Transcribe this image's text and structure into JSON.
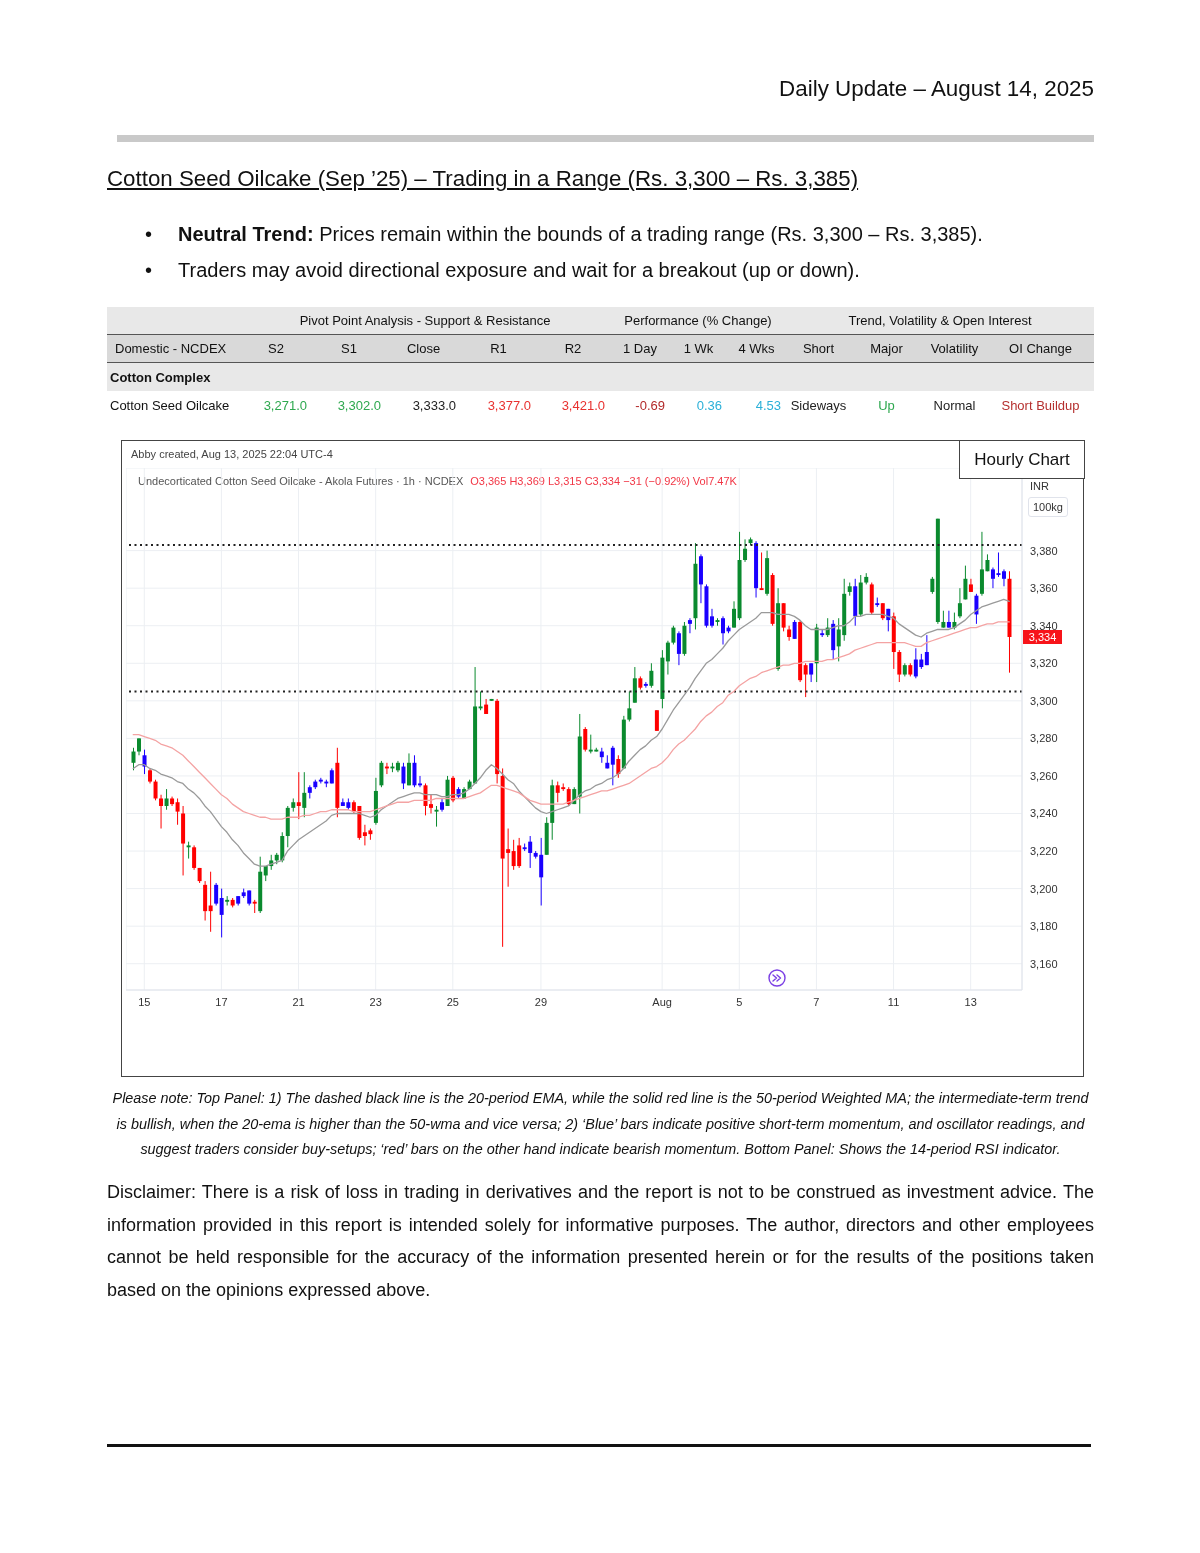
{
  "chart_data": [
    {
      "type": "other",
      "title": "Daily Update – August 14, 2025",
      "subtitle": "Cotton Seed Oilcake (Sep ’25) – Trading in a Range (Rs. 3,300 – Rs. 3,385)",
      "annotations": [
        "• Neutral Trend: Prices remain within the bounds of a trading range (Rs. 3,300 – Rs. 3,385).",
        "• Traders may avoid directional exposure and wait for a breakout (up or down)."
      ]
    },
    {
      "type": "other",
      "ylabel": "Domestic - NCDEX",
      "subtitle": "Cotton Complex",
      "annotations": [
        "Pivot Point Analysis - Support & Resistance",
        "Performance (% Change)",
        "Trend, Volatility & Open Interest"
      ],
      "categories": [
        "S2",
        "S1",
        "Close",
        "R1",
        "R2",
        "1 Day",
        "1 Wk",
        "4 Wks",
        "Short",
        "Major",
        "Volatility",
        "OI Change"
      ],
      "y_categories": [
        "Cotton Seed Oilcake"
      ],
      "cell_labels": [
        [
          "3,271.0",
          "3,302.0",
          "3,333.0",
          "3,377.0",
          "3,421.0",
          "-0.69",
          "0.36",
          "4.53",
          "Sideways",
          "Up",
          "Normal",
          "Short Buildup"
        ]
      ]
    },
    {
      "type": "candlestick",
      "title": "Hourly Chart",
      "subtitle": "Undecorticated Cotton Seed Oilcake - Akola Futures · 1h · NCDEX",
      "ylabel": "INR 100kg",
      "categories": [
        null,
        null,
        "15",
        null,
        null,
        null,
        null,
        null,
        null,
        null,
        null,
        null,
        null,
        null,
        null,
        null,
        "17",
        null,
        null,
        null,
        null,
        null,
        null,
        null,
        null,
        null,
        null,
        null,
        null,
        null,
        "21",
        null,
        null,
        null,
        null,
        null,
        null,
        null,
        null,
        null,
        null,
        null,
        null,
        null,
        "23",
        null,
        null,
        null,
        null,
        null,
        null,
        null,
        null,
        null,
        null,
        null,
        null,
        null,
        "25",
        null,
        null,
        null,
        null,
        null,
        null,
        null,
        null,
        null,
        null,
        null,
        null,
        null,
        null,
        null,
        "29",
        null,
        null,
        null,
        null,
        null,
        null,
        null,
        null,
        null,
        null,
        null,
        null,
        null,
        null,
        null,
        null,
        null,
        null,
        null,
        null,
        null,
        "Aug",
        null,
        null,
        null,
        null,
        null,
        null,
        null,
        null,
        null,
        null,
        null,
        null,
        null,
        "5",
        null,
        null,
        null,
        null,
        null,
        null,
        null,
        null,
        null,
        null,
        null,
        null,
        null,
        "7",
        null,
        null,
        null,
        null,
        null,
        null,
        null,
        null,
        null,
        null,
        null,
        null,
        null,
        "11",
        null,
        null,
        null,
        null,
        null,
        null,
        null,
        null,
        null,
        null,
        null,
        null,
        null,
        "13",
        null,
        null,
        null,
        null,
        null,
        null,
        null
      ],
      "ohlc": [
        [
          3267,
          3275,
          3263,
          3273
        ],
        [
          3273,
          3280,
          3271,
          3280
        ],
        [
          3271,
          3274,
          3261,
          3265
        ],
        [
          3263,
          3264,
          3256,
          3257
        ],
        [
          3257,
          3258,
          3247,
          3248
        ],
        [
          3248,
          3250,
          3232,
          3244
        ],
        [
          3244,
          3253,
          3242,
          3248
        ],
        [
          3248,
          3249,
          3244,
          3245
        ],
        [
          3246,
          3248,
          3234,
          3241
        ],
        [
          3240,
          3244,
          3207,
          3224
        ],
        [
          3222,
          3225,
          3216,
          3223
        ],
        [
          3222,
          3223,
          3210,
          3211
        ],
        [
          3211,
          3211,
          3203,
          3204
        ],
        [
          3202,
          3204,
          3183,
          3188
        ],
        [
          3191,
          3209,
          3177,
          3188
        ],
        [
          3192,
          3203,
          3191,
          3202
        ],
        [
          3186,
          3200,
          3174,
          3195
        ],
        [
          3193,
          3196,
          3191,
          3194
        ],
        [
          3194,
          3195,
          3190,
          3191
        ],
        [
          3192,
          3196,
          3191,
          3196
        ],
        [
          3196,
          3200,
          3195,
          3198
        ],
        [
          3199,
          3199,
          3191,
          3192
        ],
        [
          3193,
          3194,
          3187,
          3192
        ],
        [
          3188,
          3217,
          3187,
          3209
        ],
        [
          3207,
          3212,
          3204,
          3212
        ],
        [
          3212,
          3218,
          3210,
          3215
        ],
        [
          3215,
          3219,
          3213,
          3218
        ],
        [
          3215,
          3230,
          3214,
          3228
        ],
        [
          3228,
          3244,
          3222,
          3243
        ],
        [
          3243,
          3248,
          3241,
          3246
        ],
        [
          3246,
          3262,
          3237,
          3244
        ],
        [
          3243,
          3262,
          3238,
          3251
        ],
        [
          3251,
          3255,
          3248,
          3254
        ],
        [
          3254,
          3258,
          3253,
          3257
        ],
        [
          3257,
          3259,
          3256,
          3258
        ],
        [
          3257,
          3258,
          3254,
          3256
        ],
        [
          3256,
          3264,
          3256,
          3263
        ],
        [
          3267,
          3275,
          3238,
          3243
        ],
        [
          3244,
          3248,
          3244,
          3246
        ],
        [
          3246,
          3248,
          3242,
          3243
        ],
        [
          3246,
          3247,
          3240,
          3241
        ],
        [
          3244,
          3244,
          3226,
          3227
        ],
        [
          3230,
          3234,
          3223,
          3228
        ],
        [
          3231,
          3232,
          3226,
          3229
        ],
        [
          3235,
          3259,
          3234,
          3252
        ],
        [
          3255,
          3268,
          3254,
          3267
        ],
        [
          3265,
          3267,
          3261,
          3264
        ],
        [
          3264,
          3267,
          3262,
          3265
        ],
        [
          3263,
          3268,
          3262,
          3267
        ],
        [
          3265,
          3267,
          3253,
          3256
        ],
        [
          3255,
          3272,
          3255,
          3267
        ],
        [
          3267,
          3271,
          3254,
          3255
        ],
        [
          3255,
          3260,
          3254,
          3256
        ],
        [
          3255,
          3256,
          3239,
          3244
        ],
        [
          3245,
          3250,
          3240,
          3243
        ],
        [
          3241,
          3244,
          3233,
          3242
        ],
        [
          3242,
          3248,
          3241,
          3246
        ],
        [
          3244,
          3260,
          3244,
          3258
        ],
        [
          3259,
          3260,
          3246,
          3247
        ],
        [
          3253,
          3254,
          3248,
          3249
        ],
        [
          3248,
          3254,
          3248,
          3253
        ],
        [
          3253,
          3258,
          3253,
          3257
        ],
        [
          3256,
          3318,
          3256,
          3297
        ],
        [
          3296,
          3305,
          3295,
          3297
        ],
        [
          3298,
          3301,
          3293,
          3293
        ],
        [
          3300,
          3301,
          3300,
          3301
        ],
        [
          3300,
          3301,
          3256,
          3261
        ],
        [
          3260,
          3264,
          3169,
          3216
        ],
        [
          3221,
          3232,
          3201,
          3219
        ],
        [
          3220,
          3226,
          3210,
          3212
        ],
        [
          3223,
          3227,
          3211,
          3212
        ],
        [
          3222,
          3224,
          3220,
          3221
        ],
        [
          3219,
          3228,
          3211,
          3225
        ],
        [
          3219,
          3220,
          3216,
          3217
        ],
        [
          3218,
          3227,
          3191,
          3206
        ],
        [
          3218,
          3238,
          3218,
          3235
        ],
        [
          3235,
          3258,
          3226,
          3255
        ],
        [
          3255,
          3257,
          3246,
          3251
        ],
        [
          3254,
          3256,
          3252,
          3253
        ],
        [
          3253,
          3254,
          3244,
          3245
        ],
        [
          3245,
          3254,
          3245,
          3253
        ],
        [
          3249,
          3293,
          3240,
          3281
        ],
        [
          3285,
          3286,
          3273,
          3274
        ],
        [
          3273,
          3282,
          3272,
          3274
        ],
        [
          3273,
          3275,
          3273,
          3274
        ],
        [
          3273,
          3275,
          3267,
          3270
        ],
        [
          3267,
          3271,
          3264,
          3264
        ],
        [
          3266,
          3276,
          3255,
          3275
        ],
        [
          3269,
          3271,
          3259,
          3261
        ],
        [
          3264,
          3292,
          3264,
          3290
        ],
        [
          3290,
          3305,
          3289,
          3296
        ],
        [
          3299,
          3318,
          3299,
          3312
        ],
        [
          3312,
          3313,
          3306,
          3307
        ],
        [
          3309,
          3310,
          3307,
          3308
        ],
        [
          3308,
          3320,
          3307,
          3316
        ],
        [
          3295,
          3295,
          3284,
          3284
        ],
        [
          3301,
          3327,
          3296,
          3323
        ],
        [
          3321,
          3332,
          3314,
          3331
        ],
        [
          3331,
          3340,
          3330,
          3339
        ],
        [
          3336,
          3337,
          3319,
          3325
        ],
        [
          3325,
          3342,
          3324,
          3340
        ],
        [
          3341,
          3344,
          3336,
          3343
        ],
        [
          3344,
          3384,
          3338,
          3373
        ],
        [
          3377,
          3378,
          3352,
          3362
        ],
        [
          3361,
          3362,
          3339,
          3340
        ],
        [
          3340,
          3349,
          3339,
          3345
        ],
        [
          3342,
          3344,
          3340,
          3343
        ],
        [
          3344,
          3345,
          3330,
          3336
        ],
        [
          3337,
          3340,
          3336,
          3339
        ],
        [
          3339,
          3353,
          3339,
          3349
        ],
        [
          3344,
          3390,
          3343,
          3375
        ],
        [
          3375,
          3386,
          3374,
          3381
        ],
        [
          3384,
          3387,
          3383,
          3386
        ],
        [
          3384,
          3385,
          3355,
          3360
        ],
        [
          3360,
          3379,
          3359,
          3359
        ],
        [
          3357,
          3380,
          3356,
          3376
        ],
        [
          3367,
          3368,
          3340,
          3341
        ],
        [
          3317,
          3360,
          3316,
          3352
        ],
        [
          3352,
          3352,
          3337,
          3339
        ],
        [
          3338,
          3340,
          3332,
          3334
        ],
        [
          3333,
          3343,
          3333,
          3342
        ],
        [
          3342,
          3343,
          3310,
          3311
        ],
        [
          3319,
          3320,
          3302,
          3314
        ],
        [
          3314,
          3320,
          3310,
          3320
        ],
        [
          3320,
          3341,
          3310,
          3339
        ],
        [
          3336,
          3338,
          3334,
          3335
        ],
        [
          3335,
          3344,
          3334,
          3339
        ],
        [
          3341,
          3343,
          3322,
          3327
        ],
        [
          3329,
          3344,
          3321,
          3338
        ],
        [
          3335,
          3365,
          3332,
          3357
        ],
        [
          3358,
          3363,
          3356,
          3361
        ],
        [
          3361,
          3365,
          3340,
          3345
        ],
        [
          3346,
          3367,
          3345,
          3363
        ],
        [
          3363,
          3368,
          3362,
          3366
        ],
        [
          3362,
          3363,
          3346,
          3347
        ],
        [
          3351,
          3355,
          3350,
          3352
        ],
        [
          3352,
          3352,
          3343,
          3344
        ],
        [
          3349,
          3349,
          3337,
          3343
        ],
        [
          3345,
          3347,
          3317,
          3326
        ],
        [
          3326,
          3327,
          3310,
          3314
        ],
        [
          3314,
          3320,
          3313,
          3319
        ],
        [
          3319,
          3320,
          3313,
          3314
        ],
        [
          3313,
          3328,
          3312,
          3322
        ],
        [
          3322,
          3325,
          3317,
          3318
        ],
        [
          3319,
          3335,
          3319,
          3326
        ],
        [
          3358,
          3366,
          3357,
          3365
        ],
        [
          3342,
          3397,
          3341,
          3397
        ],
        [
          3339,
          3348,
          3339,
          3342
        ],
        [
          3339,
          3348,
          3339,
          3342
        ],
        [
          3339,
          3347,
          3338,
          3342
        ],
        [
          3345,
          3360,
          3344,
          3352
        ],
        [
          3354,
          3372,
          3354,
          3365
        ],
        [
          3362,
          3365,
          3358,
          3358
        ],
        [
          3356,
          3357,
          3341,
          3346
        ],
        [
          3357,
          3390,
          3356,
          3370
        ],
        [
          3369,
          3378,
          3369,
          3375
        ],
        [
          3370,
          3371,
          3360,
          3365
        ],
        [
          3367,
          3379,
          3366,
          3368
        ],
        [
          3369,
          3370,
          3361,
          3365
        ],
        [
          3365,
          3369,
          3315,
          3334
        ]
      ],
      "colors": [
        "#0a8a2e",
        "#0a8a2e",
        "#1a00ff",
        "#ff0000",
        "#ff0000",
        "#ff0000",
        "#0a8a2e",
        "#ff0000",
        "#ff0000",
        "#ff0000",
        "#0a8a2e",
        "#ff0000",
        "#ff0000",
        "#ff0000",
        "#ff0000",
        "#1a00ff",
        "#1a00ff",
        "#0a8a2e",
        "#ff0000",
        "#1a00ff",
        "#1a00ff",
        "#1a00ff",
        "#ff0000",
        "#0a8a2e",
        "#0a8a2e",
        "#0a8a2e",
        "#0a8a2e",
        "#0a8a2e",
        "#0a8a2e",
        "#0a8a2e",
        "#ff0000",
        "#0a8a2e",
        "#1a00ff",
        "#1a00ff",
        "#1a00ff",
        "#1a00ff",
        "#1a00ff",
        "#ff0000",
        "#1a00ff",
        "#1a00ff",
        "#ff0000",
        "#ff0000",
        "#ff0000",
        "#ff0000",
        "#0a8a2e",
        "#0a8a2e",
        "#ff0000",
        "#0a8a2e",
        "#0a8a2e",
        "#1a00ff",
        "#0a8a2e",
        "#1a00ff",
        "#1a00ff",
        "#ff0000",
        "#ff0000",
        "#0a8a2e",
        "#1a00ff",
        "#0a8a2e",
        "#ff0000",
        "#1a00ff",
        "#0a8a2e",
        "#0a8a2e",
        "#0a8a2e",
        "#0a8a2e",
        "#ff0000",
        "#0a8a2e",
        "#ff0000",
        "#ff0000",
        "#ff0000",
        "#ff0000",
        "#ff0000",
        "#1a00ff",
        "#1a00ff",
        "#1a00ff",
        "#1a00ff",
        "#0a8a2e",
        "#0a8a2e",
        "#ff0000",
        "#ff0000",
        "#ff0000",
        "#0a8a2e",
        "#0a8a2e",
        "#ff0000",
        "#0a8a2e",
        "#0a8a2e",
        "#1a00ff",
        "#1a00ff",
        "#1a00ff",
        "#ff0000",
        "#0a8a2e",
        "#0a8a2e",
        "#0a8a2e",
        "#ff0000",
        "#1a00ff",
        "#0a8a2e",
        "#ff0000",
        "#0a8a2e",
        "#0a8a2e",
        "#0a8a2e",
        "#1a00ff",
        "#0a8a2e",
        "#1a00ff",
        "#0a8a2e",
        "#1a00ff",
        "#1a00ff",
        "#1a00ff",
        "#0a8a2e",
        "#1a00ff",
        "#1a00ff",
        "#0a8a2e",
        "#0a8a2e",
        "#0a8a2e",
        "#0a8a2e",
        "#1a00ff",
        "#ff0000",
        "#0a8a2e",
        "#ff0000",
        "#0a8a2e",
        "#ff0000",
        "#ff0000",
        "#1a00ff",
        "#ff0000",
        "#ff0000",
        "#1a00ff",
        "#0a8a2e",
        "#1a00ff",
        "#0a8a2e",
        "#1a00ff",
        "#0a8a2e",
        "#0a8a2e",
        "#0a8a2e",
        "#1a00ff",
        "#0a8a2e",
        "#0a8a2e",
        "#ff0000",
        "#1a00ff",
        "#ff0000",
        "#1a00ff",
        "#ff0000",
        "#ff0000",
        "#0a8a2e",
        "#ff0000",
        "#1a00ff",
        "#1a00ff",
        "#1a00ff",
        "#0a8a2e",
        "#0a8a2e",
        "#0a8a2e",
        "#1a00ff",
        "#0a8a2e",
        "#0a8a2e",
        "#0a8a2e",
        "#ff0000",
        "#1a00ff",
        "#0a8a2e",
        "#0a8a2e",
        "#1a00ff",
        "#1a00ff",
        "#1a00ff",
        "#ff0000"
      ],
      "series": [
        {
          "type": "line",
          "color": "#9a9a9a",
          "values": [
            3264,
            3266,
            3266,
            3264,
            3263,
            3261,
            3260,
            3259,
            3257,
            3256,
            3253,
            3251,
            3248,
            3244,
            3241,
            3237,
            3233,
            3230,
            3226,
            3223,
            3219,
            3216,
            3213,
            3212,
            3212,
            3213,
            3214,
            3215,
            3220,
            3223,
            3226,
            3228,
            3230,
            3232,
            3234,
            3236,
            3239,
            3240,
            3240,
            3240,
            3240,
            3240,
            3239,
            3238,
            3239,
            3242,
            3244,
            3246,
            3248,
            3249,
            3250,
            3251,
            3251,
            3250,
            3250,
            3250,
            3249,
            3249,
            3250,
            3250,
            3251,
            3253,
            3256,
            3259,
            3263,
            3266,
            3264,
            3261,
            3258,
            3256,
            3252,
            3249,
            3246,
            3243,
            3241,
            3240,
            3241,
            3242,
            3243,
            3244,
            3247,
            3250,
            3252,
            3253,
            3255,
            3256,
            3258,
            3259,
            3261,
            3264,
            3268,
            3271,
            3274,
            3276,
            3279,
            3281,
            3285,
            3290,
            3295,
            3299,
            3303,
            3307,
            3312,
            3316,
            3320,
            3322,
            3325,
            3328,
            3332,
            3335,
            3338,
            3340,
            3342,
            3344,
            3347,
            3347,
            3347,
            3346,
            3346,
            3346,
            3345,
            3343,
            3340,
            3338,
            3338,
            3338,
            3338,
            3339,
            3340,
            3340,
            3342,
            3345,
            3345,
            3346,
            3346,
            3346,
            3346,
            3345,
            3344,
            3341,
            3339,
            3337,
            3335,
            3334,
            3336,
            3337,
            3338,
            3338,
            3338,
            3339,
            3341,
            3343,
            3346,
            3348,
            3350,
            3351,
            3352,
            3353,
            3354,
            3353
          ]
        },
        {
          "type": "line",
          "color": "#f4a3a3",
          "values": [
            3282,
            3282,
            3281,
            3280,
            3279,
            3277,
            3276,
            3275,
            3273,
            3271,
            3268,
            3265,
            3262,
            3259,
            3256,
            3253,
            3250,
            3248,
            3245,
            3243,
            3241,
            3240,
            3239,
            3238,
            3238,
            3237,
            3237,
            3237,
            3238,
            3238,
            3238,
            3239,
            3239,
            3240,
            3241,
            3241,
            3242,
            3242,
            3242,
            3242,
            3241,
            3241,
            3241,
            3241,
            3242,
            3243,
            3244,
            3245,
            3246,
            3246,
            3246,
            3247,
            3247,
            3247,
            3247,
            3248,
            3248,
            3248,
            3248,
            3248,
            3248,
            3249,
            3250,
            3251,
            3253,
            3255,
            3255,
            3254,
            3253,
            3252,
            3251,
            3249,
            3247,
            3246,
            3245,
            3245,
            3245,
            3245,
            3245,
            3246,
            3247,
            3248,
            3249,
            3250,
            3251,
            3252,
            3252,
            3253,
            3254,
            3255,
            3256,
            3258,
            3260,
            3262,
            3264,
            3265,
            3267,
            3270,
            3274,
            3277,
            3279,
            3282,
            3285,
            3289,
            3292,
            3294,
            3297,
            3299,
            3303,
            3305,
            3308,
            3310,
            3312,
            3313,
            3315,
            3316,
            3317,
            3318,
            3319,
            3319,
            3320,
            3320,
            3321,
            3321,
            3321,
            3321,
            3322,
            3322,
            3323,
            3324,
            3325,
            3327,
            3328,
            3329,
            3330,
            3331,
            3331,
            3331,
            3331,
            3331,
            3331,
            3330,
            3329,
            3329,
            3331,
            3332,
            3333,
            3334,
            3335,
            3336,
            3337,
            3338,
            3339,
            3339,
            3340,
            3341,
            3341,
            3342,
            3342,
            3342
          ]
        }
      ],
      "ylim": [
        3146,
        3424
      ],
      "yticks": [
        {
          "value": 3160,
          "label": "3,160"
        },
        {
          "value": 3180,
          "label": "3,180"
        },
        {
          "value": 3200,
          "label": "3,200"
        },
        {
          "value": 3220,
          "label": "3,220"
        },
        {
          "value": 3240,
          "label": "3,240"
        },
        {
          "value": 3260,
          "label": "3,260"
        },
        {
          "value": 3280,
          "label": "3,280"
        },
        {
          "value": 3300,
          "label": "3,300"
        },
        {
          "value": 3320,
          "label": "3,320"
        },
        {
          "value": 3340,
          "label": "3,340"
        },
        {
          "value": 3360,
          "label": "3,360"
        },
        {
          "value": 3380,
          "label": "3,380"
        }
      ],
      "grid": true,
      "ref_lines": [
        {
          "axis": "y",
          "value": 3383,
          "color": "#222222",
          "line_style": "dotted"
        },
        {
          "axis": "y",
          "value": 3305,
          "color": "#222222",
          "line_style": "dotted"
        }
      ],
      "annotations": [
        "Abby created, Aug 13, 2025 22:04 UTC-4",
        "O3,365 H3,369 L3,315 C3,334 −31 (−0.92%) Vol7.47K",
        {
          "text": "3,334",
          "y": 3334
        },
        "Please note: Top Panel: 1) The dashed black line is the 20-period EMA, while the solid red line is the 50-period Weighted MA; the intermediate-term trend is bullish, when the 20-ema is higher than the 50-wma and vice versa; 2) ‘Blue’ bars indicate positive short-term momentum, and oscillator readings, and suggest traders consider buy-setups; ‘red’ bars on the other hand indicate bearish momentum. Bottom Panel: Shows the 14-period RSI indicator.",
        "Disclaimer: There is a risk of loss in trading in derivatives and the report is not to be construed as investment advice. The information provided in this report is intended solely for informative purposes. The author, directors and other employees cannot be held responsible for the accuracy of the information presented herein or for the results of the positions taken based on the opinions expressed above."
      ]
    }
  ]
}
